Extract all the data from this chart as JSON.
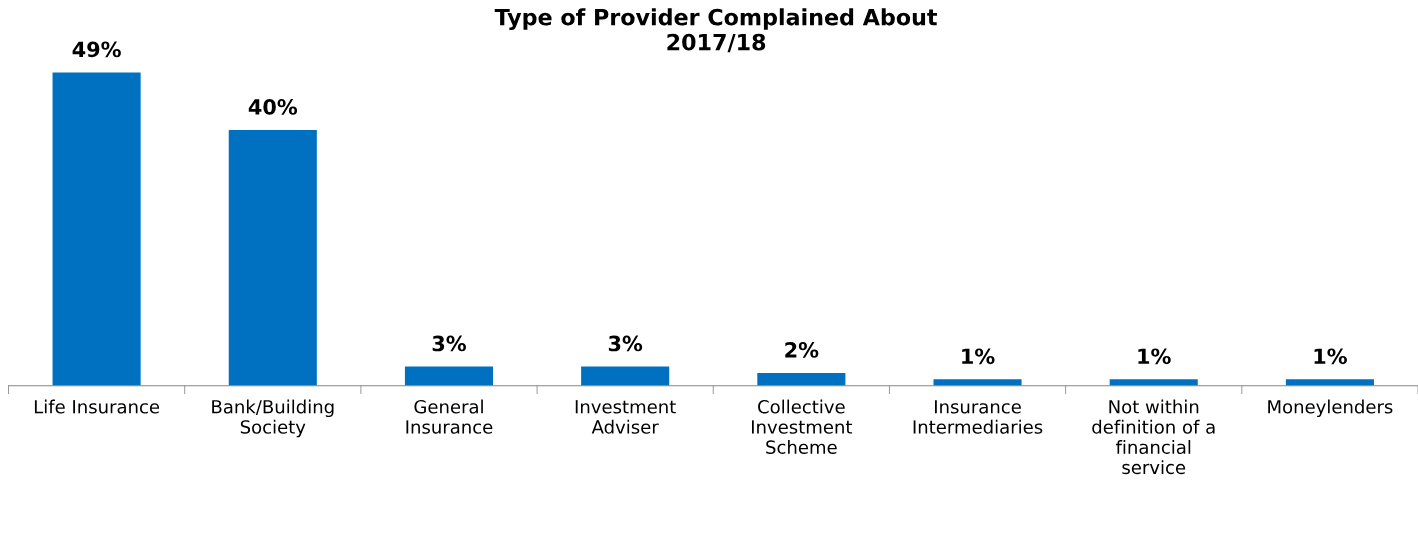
{
  "chart_data": {
    "type": "bar",
    "title": "Type of Provider Complained About\n2017/18",
    "categories": [
      "Life Insurance",
      "Bank/Building\nSociety",
      "General\nInsurance",
      "Investment\nAdviser",
      "Collective\nInvestment\nScheme",
      "Insurance\nIntermediaries",
      "Not within\ndefinition of a\nfinancial\nservice",
      "Moneylenders"
    ],
    "values": [
      49,
      40,
      3,
      3,
      2,
      1,
      1,
      1
    ],
    "value_labels": [
      "49%",
      "40%",
      "3%",
      "3%",
      "2%",
      "1%",
      "1%",
      "1%"
    ],
    "color": "#0070c0",
    "grid": false,
    "legend": false
  }
}
